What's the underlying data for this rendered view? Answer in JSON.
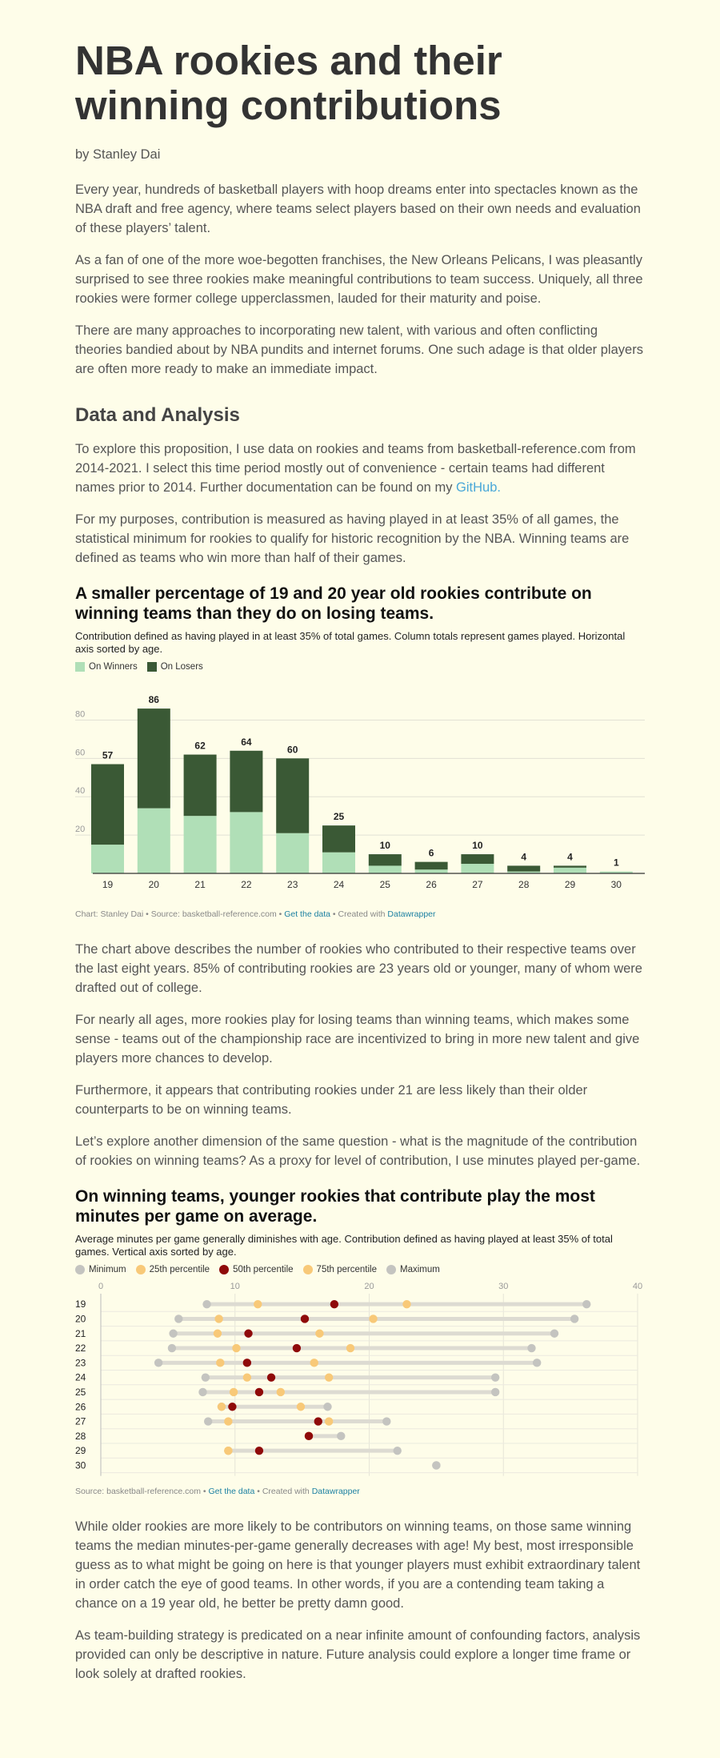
{
  "article": {
    "title": "NBA rookies and their winning contributions",
    "byline": "by Stanley Dai",
    "intro": [
      "Every year, hundreds of basketball players with hoop dreams enter into spectacles known as the NBA draft and free agency, where teams select players based on their own needs and evaluation of these players’ talent.",
      "As a fan of one of the more woe-begotten franchises, the New Orleans Pelicans, I was pleasantly surprised to see three rookies make meaningful contributions to team success. Uniquely, all three rookies were former college upperclassmen, lauded for their maturity and poise.",
      "There are many approaches to incorporating new talent, with various and often conflicting theories bandied about by NBA pundits and internet forums. One such adage is that older players are often more ready to make an immediate impact."
    ],
    "section_heading": "Data and Analysis",
    "data_para_text": "To explore this proposition, I use data on rookies and teams from basketball-reference.com from 2014-2021. I select this time period mostly out of convenience - certain teams had different names prior to 2014. Further documentation can be found on my ",
    "data_para_link": "GitHub.",
    "purpose_para": "For my purposes, contribution is measured as having played in at least 35% of all games, the statistical minimum for rookies to qualify for historic recognition by the NBA. Winning teams are defined as teams who win more than half of their games.",
    "middle": [
      "The chart above describes the number of rookies who contributed to their respective teams over the last eight years. 85% of contributing rookies are 23 years old or younger, many of whom were drafted out of college.",
      "For nearly all ages, more rookies play for losing teams than winning teams, which makes some sense - teams out of the championship race are incentivized to bring in more new talent and give players more chances to develop.",
      "Furthermore, it appears that contributing rookies under 21 are less likely than their older counterparts to be on winning teams.",
      "Let’s explore another dimension of the same question - what is the magnitude of the contribution of rookies on winning teams? As a proxy for level of contribution, I use minutes played per-game."
    ],
    "ending": [
      "While older rookies are more likely to be contributors on winning teams, on those same winning teams the median minutes-per-game generally decreases with age! My best, most irresponsible guess as to what might be going on here is that younger players must exhibit extraordinary talent in order catch the eye of good teams. In other words, if you are a contending team taking a chance on a 19 year old, he better be pretty damn good.",
      "As team-building strategy is predicated on a near infinite amount of confounding factors, analysis provided can only be descriptive in nature. Future analysis could explore a longer time frame or look solely at drafted rookies."
    ]
  },
  "chart1": {
    "title": "A smaller percentage of 19 and 20 year old rookies contribute on winning teams than they do on losing teams.",
    "subtitle": "Contribution defined as having played in at least 35% of total games. Column totals represent games played. Horizontal axis sorted by age.",
    "footer_prefix": "Chart: Stanley Dai • Source: basketball-reference.com • ",
    "footer_link1": "Get the data",
    "footer_mid": " • Created with ",
    "footer_link2": "Datawrapper",
    "colors": {
      "winners": "#b0dfb7",
      "losers": "#3a5935"
    }
  },
  "chart2": {
    "title": "On winning teams, younger rookies that contribute play the most minutes per game on average.",
    "subtitle": "Average minutes per game generally diminishes with age. Contribution defined as having played at least 35% of total games. Vertical axis sorted by age.",
    "footer_prefix": "Source: basketball-reference.com • ",
    "footer_link1": "Get the data",
    "footer_mid": " • Created with ",
    "footer_link2": "Datawrapper",
    "colors": {
      "minimum": "#c4c4c0",
      "p25": "#f8c978",
      "p50": "#8f0a0a",
      "p75": "#f8c978",
      "maximum": "#c4c4c0",
      "range": "#dddbd2"
    }
  },
  "chart_data": [
    {
      "type": "bar",
      "stacked": true,
      "categories": [
        "19",
        "20",
        "21",
        "22",
        "23",
        "24",
        "25",
        "26",
        "27",
        "28",
        "29",
        "30"
      ],
      "series": [
        {
          "name": "On Winners",
          "values": [
            15,
            34,
            30,
            32,
            21,
            11,
            4,
            2,
            5,
            1,
            3,
            1
          ]
        },
        {
          "name": "On Losers",
          "values": [
            42,
            52,
            32,
            32,
            39,
            14,
            6,
            4,
            5,
            3,
            1,
            0
          ]
        }
      ],
      "totals": [
        57,
        86,
        62,
        64,
        60,
        25,
        10,
        6,
        10,
        4,
        4,
        1
      ],
      "yticks": [
        20,
        40,
        60,
        80
      ],
      "ylim": [
        0,
        90
      ],
      "grid": true,
      "legend": "top-left"
    },
    {
      "type": "scatter",
      "subtype": "range-plot",
      "categories": [
        "19",
        "20",
        "21",
        "22",
        "23",
        "24",
        "25",
        "26",
        "27",
        "28",
        "29",
        "30"
      ],
      "series": [
        {
          "name": "Minimum",
          "values": [
            7.9,
            5.8,
            5.4,
            5.3,
            4.3,
            7.8,
            7.6,
            9.0,
            8.0,
            15.5,
            9.5,
            25.0
          ]
        },
        {
          "name": "25th percentile",
          "values": [
            11.7,
            8.8,
            8.7,
            10.1,
            8.9,
            10.9,
            9.9,
            9.0,
            9.5,
            15.5,
            9.5,
            null
          ]
        },
        {
          "name": "50th percentile",
          "values": [
            17.4,
            15.2,
            11.0,
            14.6,
            10.9,
            12.7,
            11.8,
            9.8,
            16.2,
            15.5,
            11.8,
            null
          ]
        },
        {
          "name": "75th percentile",
          "values": [
            22.8,
            20.3,
            16.3,
            18.6,
            15.9,
            17.0,
            13.4,
            14.9,
            17.0,
            15.5,
            9.5,
            null
          ]
        },
        {
          "name": "Maximum",
          "values": [
            36.2,
            35.3,
            33.8,
            32.1,
            32.5,
            29.4,
            29.4,
            16.9,
            21.3,
            17.9,
            22.1,
            25.0
          ]
        }
      ],
      "xticks": [
        0,
        10,
        20,
        30,
        40
      ],
      "xlim": [
        0,
        40
      ],
      "grid": true,
      "legend": "top-left"
    }
  ]
}
